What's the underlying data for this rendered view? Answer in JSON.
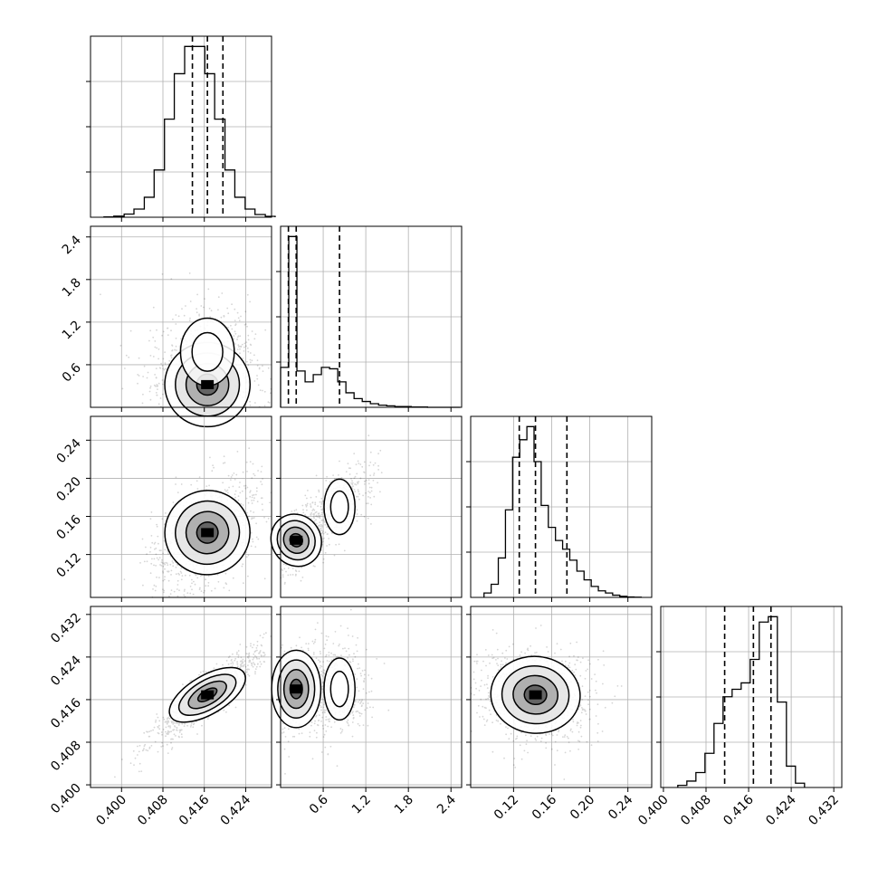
{
  "chart_data": {
    "type": "corner",
    "parameters": [
      {
        "name": "",
        "range": [
          0.394,
          0.429
        ],
        "ticks": [
          0.4,
          0.408,
          0.416,
          0.424
        ],
        "tick_labels": [
          "0.400",
          "0.408",
          "0.416",
          "0.424"
        ],
        "quantiles": [
          0.4137,
          0.4166,
          0.4196
        ],
        "hist": {
          "bin_edges": [
            0.3966,
            0.3985,
            0.4005,
            0.4024,
            0.4044,
            0.4063,
            0.4083,
            0.4102,
            0.4122,
            0.4141,
            0.4161,
            0.418,
            0.42,
            0.4219,
            0.4239,
            0.4258,
            0.4278,
            0.4297
          ],
          "counts": [
            0.4,
            1.2,
            3.5,
            9,
            22,
            52,
            108,
            158,
            188,
            188,
            158,
            108,
            52,
            22,
            9,
            3,
            1
          ]
        }
      },
      {
        "name": "",
        "range": [
          0.0,
          2.55
        ],
        "ticks": [
          0.6,
          1.2,
          1.8,
          2.4
        ],
        "tick_labels": [
          "0.6",
          "1.2",
          "1.8",
          "2.4"
        ],
        "quantiles": [
          0.11,
          0.22,
          0.83
        ],
        "hist": {
          "bin_edges": [
            0.0,
            0.115,
            0.23,
            0.345,
            0.46,
            0.575,
            0.69,
            0.805,
            0.92,
            1.035,
            1.15,
            1.265,
            1.38,
            1.495,
            1.61,
            1.725,
            1.84,
            1.955,
            2.07,
            2.185,
            2.3,
            2.415,
            2.53
          ],
          "counts": [
            0.55,
            2.35,
            0.5,
            0.35,
            0.45,
            0.55,
            0.53,
            0.35,
            0.2,
            0.12,
            0.08,
            0.05,
            0.03,
            0.02,
            0.01,
            0.01,
            0.005,
            0.005,
            0.0,
            0.0,
            0.0,
            0.0
          ]
        }
      },
      {
        "name": "",
        "range": [
          0.075,
          0.265
        ],
        "ticks": [
          0.12,
          0.16,
          0.2,
          0.24
        ],
        "tick_labels": [
          "0.12",
          "0.16",
          "0.20",
          "0.24"
        ],
        "quantiles": [
          0.126,
          0.143,
          0.176
        ],
        "hist": {
          "bin_edges": [
            0.089,
            0.0965,
            0.104,
            0.1115,
            0.119,
            0.1265,
            0.134,
            0.1415,
            0.149,
            0.1565,
            0.164,
            0.1715,
            0.179,
            0.1865,
            0.194,
            0.2015,
            0.209,
            0.2165,
            0.224,
            0.2315,
            0.239,
            0.2465,
            0.254
          ],
          "counts": [
            2,
            6,
            18,
            40,
            64,
            72,
            78,
            62,
            42,
            32,
            26,
            22,
            17,
            12,
            8,
            5,
            3,
            2,
            1,
            0.5,
            0.2,
            0.1
          ]
        }
      },
      {
        "name": "",
        "range": [
          0.3995,
          0.4335
        ],
        "ticks": [
          0.4,
          0.408,
          0.416,
          0.424,
          0.432
        ],
        "tick_labels": [
          "0.400",
          "0.408",
          "0.416",
          "0.424",
          "0.432"
        ],
        "quantiles": [
          0.4115,
          0.4169,
          0.4202
        ],
        "hist": {
          "bin_edges": [
            0.4027,
            0.4044,
            0.4061,
            0.4078,
            0.4095,
            0.4112,
            0.4129,
            0.4146,
            0.4163,
            0.418,
            0.4197,
            0.4214,
            0.4231,
            0.4248,
            0.4265
          ],
          "counts": [
            2,
            6,
            14,
            32,
            60,
            85,
            92,
            98,
            120,
            155,
            160,
            80,
            20,
            4
          ]
        }
      }
    ],
    "pairs": [
      {
        "row": 1,
        "col": 0,
        "center": [
          0.4166,
          0.32
        ],
        "cov": [
          [
            1.7e-05,
            0.0
          ],
          [
            0.0,
            0.08
          ]
        ],
        "second_mode": [
          0.4166,
          0.78
        ]
      },
      {
        "row": 2,
        "col": 0,
        "center": [
          0.4166,
          0.143
        ],
        "cov": [
          [
            1.7e-05,
            4.5e-05
          ],
          [
            4.5e-05,
            0.00055
          ]
        ]
      },
      {
        "row": 2,
        "col": 1,
        "center": [
          0.22,
          0.135
        ],
        "cov": [
          [
            0.03,
            0.002
          ],
          [
            0.002,
            0.0003
          ]
        ],
        "second_mode": [
          0.83,
          0.17
        ]
      },
      {
        "row": 3,
        "col": 0,
        "center": [
          0.4166,
          0.4169
        ],
        "cov": [
          [
            1.7e-05,
            1.3e-05
          ],
          [
            1.3e-05,
            1.2e-05
          ]
        ]
      },
      {
        "row": 3,
        "col": 1,
        "center": [
          0.22,
          0.418
        ],
        "cov": [
          [
            0.03,
            0.0
          ],
          [
            0.0,
            1.2e-05
          ]
        ],
        "second_mode": [
          0.83,
          0.418
        ]
      },
      {
        "row": 3,
        "col": 2,
        "center": [
          0.143,
          0.4169
        ],
        "cov": [
          [
            0.00055,
            -1e-05
          ],
          [
            -1e-05,
            1.2e-05
          ]
        ]
      }
    ]
  }
}
